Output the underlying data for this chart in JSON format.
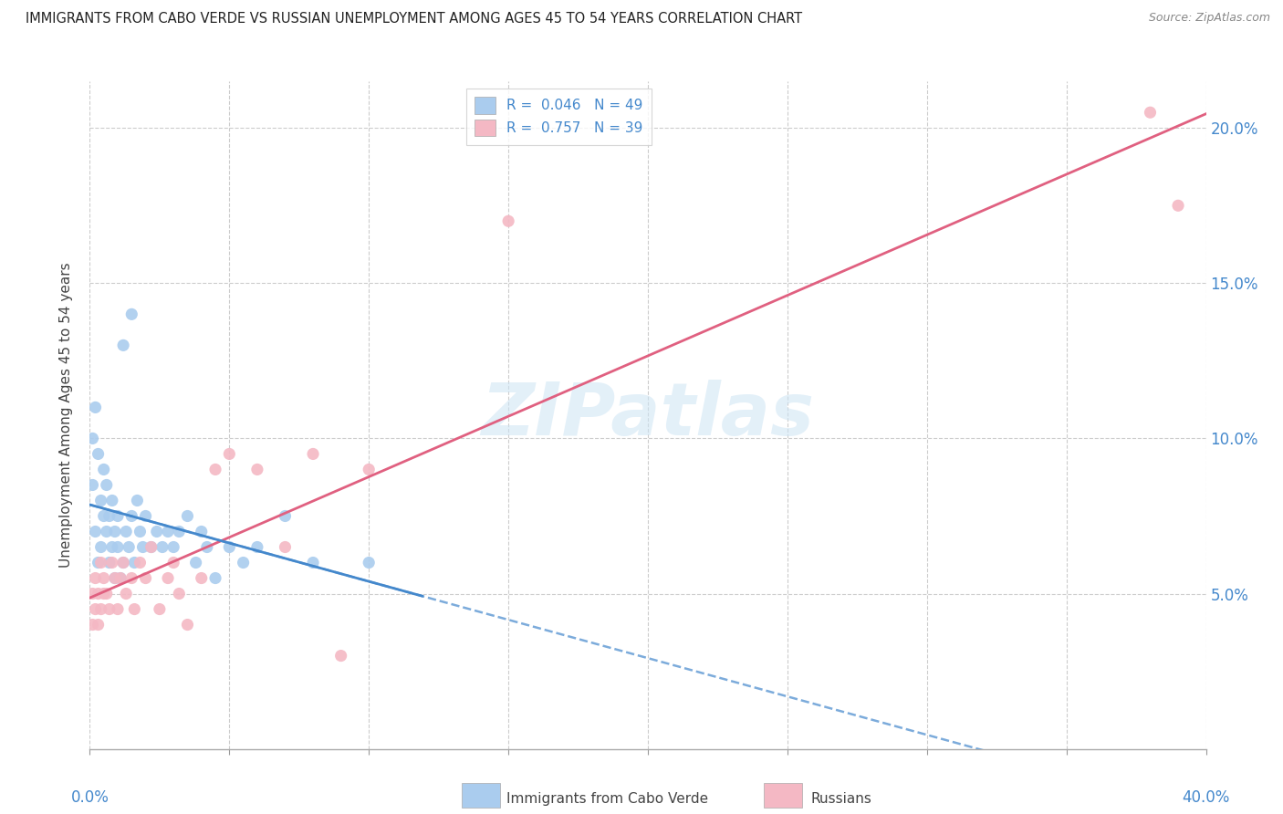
{
  "title": "IMMIGRANTS FROM CABO VERDE VS RUSSIAN UNEMPLOYMENT AMONG AGES 45 TO 54 YEARS CORRELATION CHART",
  "source": "Source: ZipAtlas.com",
  "ylabel": "Unemployment Among Ages 45 to 54 years",
  "ylabel_right_ticks": [
    "20.0%",
    "15.0%",
    "10.0%",
    "5.0%"
  ],
  "ylabel_right_values": [
    0.2,
    0.15,
    0.1,
    0.05
  ],
  "xlim": [
    0.0,
    0.4
  ],
  "ylim": [
    0.0,
    0.215
  ],
  "cabo_verde_color": "#aaccee",
  "cabo_verde_line_color": "#4488cc",
  "russians_color": "#f4b8c4",
  "russians_line_color": "#e06080",
  "cabo_verde_R": 0.046,
  "cabo_verde_N": 49,
  "russians_R": 0.757,
  "russians_N": 39,
  "watermark": "ZIPatlas",
  "cabo_verde_x": [
    0.001,
    0.001,
    0.002,
    0.002,
    0.003,
    0.003,
    0.004,
    0.004,
    0.005,
    0.005,
    0.006,
    0.006,
    0.007,
    0.007,
    0.008,
    0.008,
    0.009,
    0.009,
    0.01,
    0.01,
    0.011,
    0.012,
    0.013,
    0.014,
    0.015,
    0.016,
    0.017,
    0.018,
    0.019,
    0.02,
    0.022,
    0.024,
    0.026,
    0.028,
    0.03,
    0.032,
    0.035,
    0.038,
    0.04,
    0.042,
    0.045,
    0.05,
    0.055,
    0.06,
    0.07,
    0.08,
    0.1,
    0.015,
    0.012
  ],
  "cabo_verde_y": [
    0.1,
    0.085,
    0.11,
    0.07,
    0.095,
    0.06,
    0.08,
    0.065,
    0.075,
    0.09,
    0.085,
    0.07,
    0.075,
    0.06,
    0.08,
    0.065,
    0.055,
    0.07,
    0.065,
    0.075,
    0.055,
    0.06,
    0.07,
    0.065,
    0.075,
    0.06,
    0.08,
    0.07,
    0.065,
    0.075,
    0.065,
    0.07,
    0.065,
    0.07,
    0.065,
    0.07,
    0.075,
    0.06,
    0.07,
    0.065,
    0.055,
    0.065,
    0.06,
    0.065,
    0.075,
    0.06,
    0.06,
    0.14,
    0.13
  ],
  "russians_x": [
    0.001,
    0.001,
    0.002,
    0.002,
    0.003,
    0.003,
    0.004,
    0.004,
    0.005,
    0.005,
    0.006,
    0.007,
    0.008,
    0.009,
    0.01,
    0.011,
    0.012,
    0.013,
    0.015,
    0.016,
    0.018,
    0.02,
    0.022,
    0.025,
    0.028,
    0.03,
    0.032,
    0.035,
    0.04,
    0.045,
    0.05,
    0.06,
    0.07,
    0.08,
    0.09,
    0.1,
    0.15,
    0.38,
    0.39
  ],
  "russians_y": [
    0.05,
    0.04,
    0.055,
    0.045,
    0.05,
    0.04,
    0.06,
    0.045,
    0.055,
    0.05,
    0.05,
    0.045,
    0.06,
    0.055,
    0.045,
    0.055,
    0.06,
    0.05,
    0.055,
    0.045,
    0.06,
    0.055,
    0.065,
    0.045,
    0.055,
    0.06,
    0.05,
    0.04,
    0.055,
    0.09,
    0.095,
    0.09,
    0.065,
    0.095,
    0.03,
    0.09,
    0.17,
    0.205,
    0.175
  ],
  "background_color": "#ffffff",
  "grid_color": "#cccccc"
}
